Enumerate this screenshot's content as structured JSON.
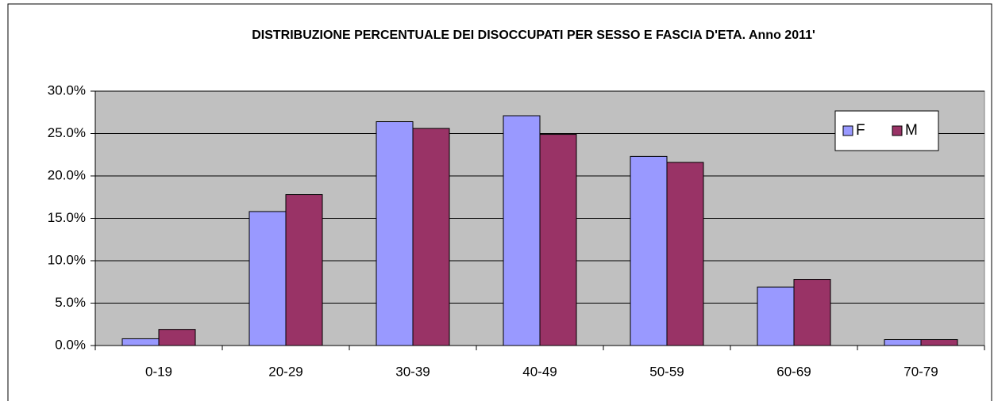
{
  "chart_data": {
    "type": "bar",
    "title": "DISTRIBUZIONE PERCENTUALE DEI DISOCCUPATI PER SESSO E FASCIA D'ETA. Anno 2011'",
    "categories": [
      "0-19",
      "20-29",
      "30-39",
      "40-49",
      "50-59",
      "60-69",
      "70-79"
    ],
    "series": [
      {
        "name": "F",
        "color": "#9999ff",
        "values": [
          0.8,
          15.8,
          26.4,
          27.1,
          22.3,
          6.9,
          0.7
        ]
      },
      {
        "name": "M",
        "color": "#993366",
        "values": [
          1.9,
          17.8,
          25.6,
          24.9,
          21.6,
          7.8,
          0.7
        ]
      }
    ],
    "ylim": [
      0,
      30
    ],
    "yticks": [
      {
        "value": 0,
        "label": "0.0%"
      },
      {
        "value": 5,
        "label": "5.0%"
      },
      {
        "value": 10,
        "label": "10.0%"
      },
      {
        "value": 15,
        "label": "15.0%"
      },
      {
        "value": 20,
        "label": "20.0%"
      },
      {
        "value": 25,
        "label": "25.0%"
      },
      {
        "value": 30,
        "label": "30.0%"
      }
    ],
    "grid": true,
    "legend": "upper right"
  }
}
